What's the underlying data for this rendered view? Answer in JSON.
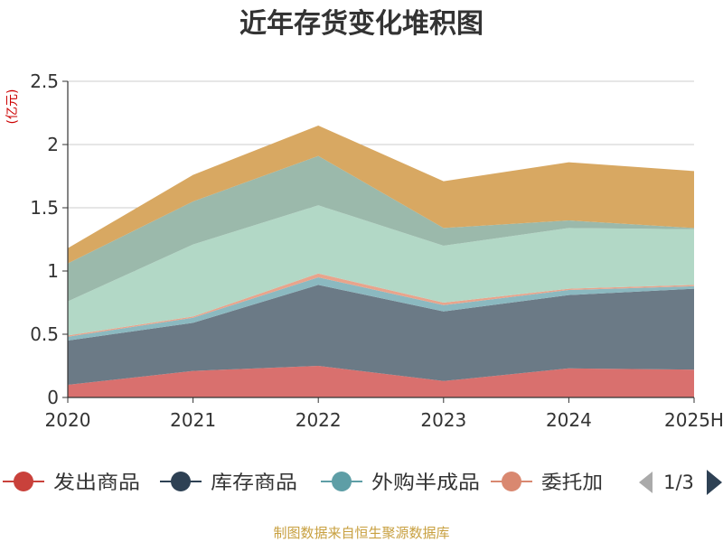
{
  "chart_data": {
    "type": "area",
    "stacked": true,
    "title": "近年存货变化堆积图",
    "unit_label": "(亿元)",
    "categories": [
      "2020",
      "2021",
      "2022",
      "2023",
      "2024",
      "2025H"
    ],
    "ylim": [
      0,
      2.5
    ],
    "y_ticks": [
      "0",
      "0.5",
      "1",
      "1.5",
      "2",
      "2.5"
    ],
    "grid": true,
    "series": [
      {
        "name": "发出商品",
        "color": "#d9706e",
        "values": [
          0.1,
          0.21,
          0.25,
          0.13,
          0.23,
          0.22
        ]
      },
      {
        "name": "库存商品",
        "color": "#6b7a86",
        "values": [
          0.35,
          0.38,
          0.64,
          0.55,
          0.58,
          0.64
        ]
      },
      {
        "name": "外购半成品",
        "color": "#8bb9c0",
        "values": [
          0.03,
          0.04,
          0.06,
          0.05,
          0.04,
          0.02
        ]
      },
      {
        "name": "委托加工物资",
        "color": "#e8a48c",
        "values": [
          0.01,
          0.01,
          0.03,
          0.02,
          0.01,
          0.01
        ]
      },
      {
        "name": "",
        "color": "#b2d8c6",
        "values": [
          0.27,
          0.57,
          0.54,
          0.45,
          0.48,
          0.44
        ]
      },
      {
        "name": "",
        "color": "#9bb9ab",
        "values": [
          0.3,
          0.34,
          0.39,
          0.14,
          0.06,
          0.01
        ]
      },
      {
        "name": "",
        "color": "#d8a862",
        "values": [
          0.12,
          0.21,
          0.24,
          0.37,
          0.46,
          0.45
        ]
      }
    ],
    "legend": {
      "position": "bottom",
      "visible_items": [
        "发出商品",
        "库存商品",
        "外购半成品",
        "委托加"
      ],
      "marker_colors": [
        "#c9413b",
        "#2e4154",
        "#5e9ea6",
        "#d98870"
      ],
      "page": "1/3"
    },
    "source": "制图数据来自恒生聚源数据库"
  }
}
